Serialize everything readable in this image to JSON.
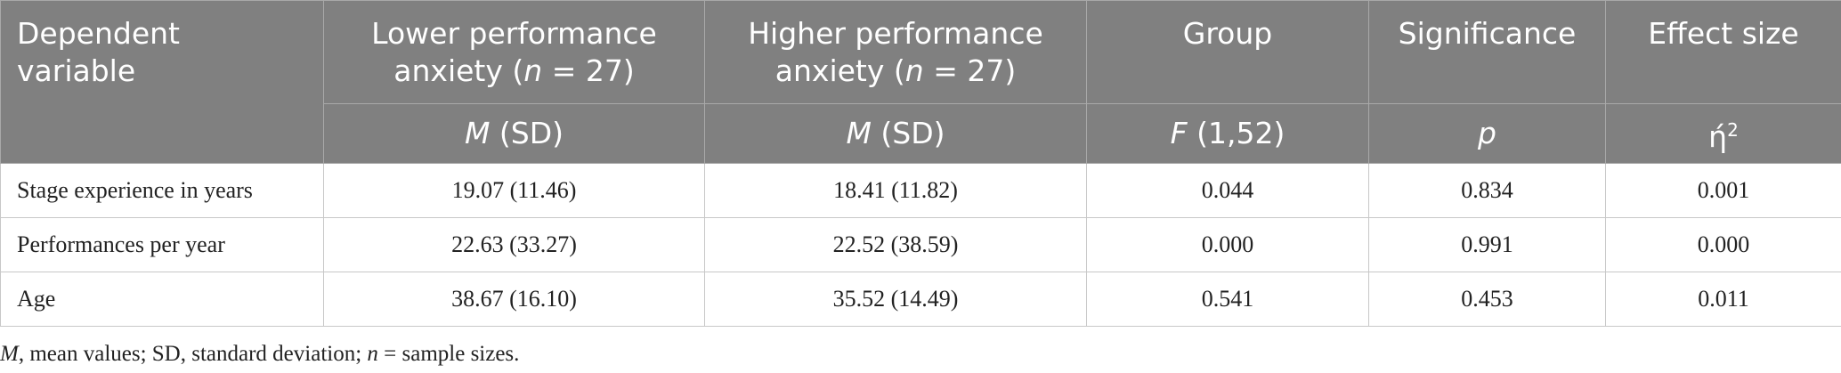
{
  "table": {
    "columns": [
      {
        "title": [
          "Dependent variable"
        ]
      },
      {
        "title": [
          "Lower performance anxiety (",
          "n",
          " = 27)"
        ],
        "subtitle": [
          "M",
          " (SD)"
        ]
      },
      {
        "title": [
          "Higher performance anxiety (",
          "n",
          " = 27)"
        ],
        "subtitle": [
          "M",
          " (SD)"
        ]
      },
      {
        "title": [
          "Group"
        ],
        "subtitle": [
          "F",
          " (1,52)"
        ]
      },
      {
        "title": [
          "Significance"
        ],
        "subtitle": [
          "p"
        ]
      },
      {
        "title": [
          "Effect size"
        ],
        "subtitle": [
          "ή",
          "2"
        ]
      }
    ],
    "rows": [
      [
        "Stage experience in years",
        "19.07 (11.46)",
        "18.41 (11.82)",
        "0.044",
        "0.834",
        "0.001"
      ],
      [
        "Performances per year",
        "22.63 (33.27)",
        "22.52 (38.59)",
        "0.000",
        "0.991",
        "0.000"
      ],
      [
        "Age",
        "38.67 (16.10)",
        "35.52 (14.49)",
        "0.541",
        "0.453",
        "0.011"
      ]
    ],
    "footnote": [
      "M",
      ", mean values; SD, standard deviation; ",
      "n",
      " = sample sizes."
    ]
  }
}
